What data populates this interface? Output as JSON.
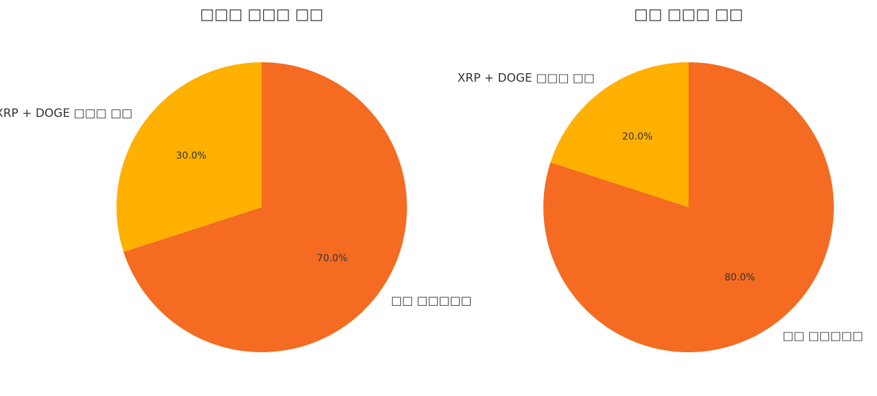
{
  "chart_data": [
    {
      "type": "pie",
      "title": "□□□ □□□ □□",
      "categories": [
        "XRP + DOGE □□□ □□",
        "□□ □□□□□"
      ],
      "values": [
        30,
        70
      ],
      "value_labels": [
        "30.0%",
        "70.0%"
      ],
      "colors": [
        "#ffb000",
        "#f46b21"
      ]
    },
    {
      "type": "pie",
      "title": "□□ □□□ □□",
      "categories": [
        "XRP + DOGE □□□ □□",
        "□□ □□□□□"
      ],
      "values": [
        20,
        80
      ],
      "value_labels": [
        "20.0%",
        "80.0%"
      ],
      "colors": [
        "#ffb000",
        "#f46b21"
      ]
    }
  ]
}
